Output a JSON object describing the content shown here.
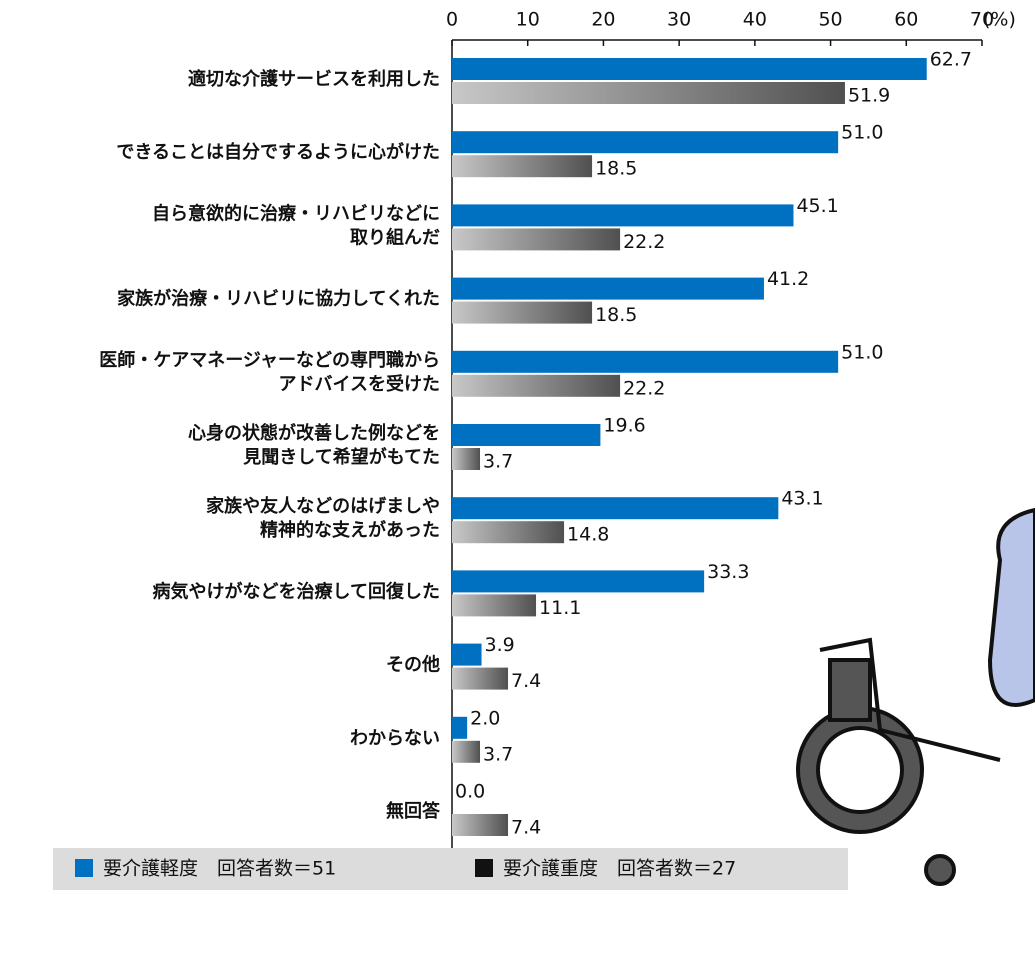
{
  "chart_data": {
    "type": "bar",
    "orientation": "horizontal",
    "x_unit": "(%)",
    "categories": [
      [
        "適切な介護サービスを利用した"
      ],
      [
        "できることは自分でするように心がけた"
      ],
      [
        "自ら意欲的に治療・リハビリなどに",
        "取り組んだ"
      ],
      [
        "家族が治療・リハビリに協力してくれた"
      ],
      [
        "医師・ケアマネージャーなどの専門職から",
        "アドバイスを受けた"
      ],
      [
        "心身の状態が改善した例などを",
        "見聞きして希望がもてた"
      ],
      [
        "家族や友人などのはげましや",
        "精神的な支えがあった"
      ],
      [
        "病気やけがなどを治療して回復した"
      ],
      [
        "その他"
      ],
      [
        "わからない"
      ],
      [
        "無回答"
      ]
    ],
    "series": [
      {
        "name": "要介護軽度　回答者数＝51",
        "color": "#0070c0",
        "values": [
          62.7,
          51.0,
          45.1,
          41.2,
          51.0,
          19.6,
          43.1,
          33.3,
          3.9,
          2.0,
          0.0
        ],
        "value_labels": [
          "62.7",
          "51.0",
          "45.1",
          "41.2",
          "51.0",
          "19.6",
          "43.1",
          "33.3",
          "3.9",
          "2.0",
          "0.0"
        ]
      },
      {
        "name": "要介護重度　回答者数＝27",
        "color": "#505050",
        "values": [
          51.9,
          18.5,
          22.2,
          18.5,
          22.2,
          3.7,
          14.8,
          11.1,
          7.4,
          3.7,
          7.4
        ],
        "value_labels": [
          "51.9",
          "18.5",
          "22.2",
          "18.5",
          "22.2",
          "3.7",
          "14.8",
          "11.1",
          "7.4",
          "3.7",
          "7.4"
        ]
      }
    ],
    "xlim": [
      0,
      70
    ],
    "xticks": [
      0,
      10,
      20,
      30,
      40,
      50,
      60,
      70
    ]
  }
}
